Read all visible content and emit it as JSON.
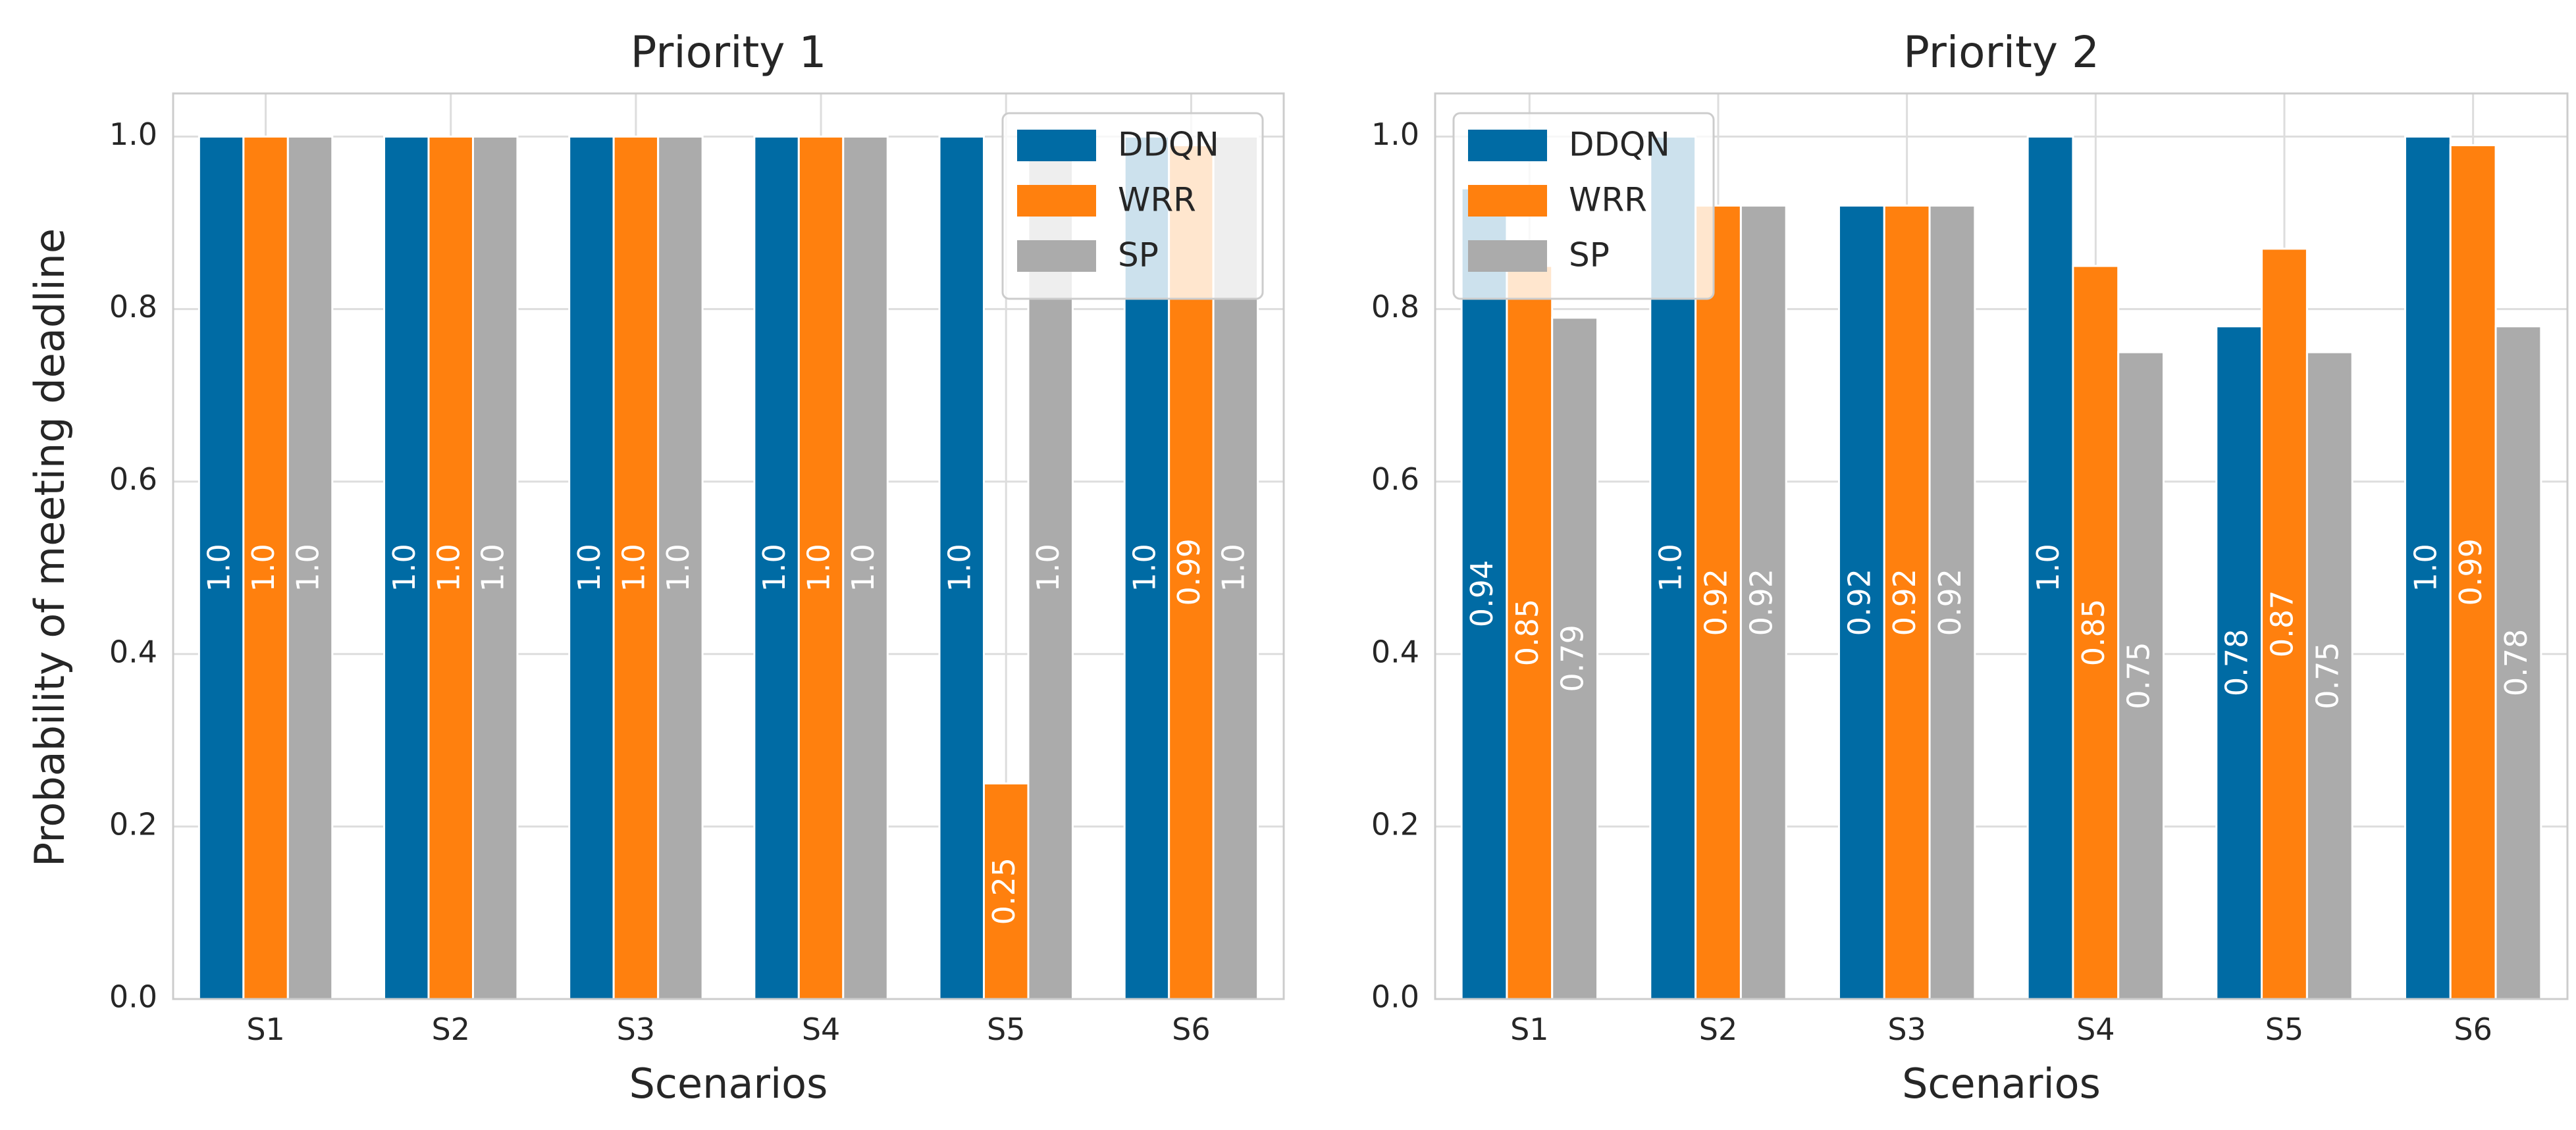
{
  "shared_ylabel": "Probability of meeting deadline",
  "chart_data": [
    {
      "type": "bar",
      "title": "Priority 1",
      "xlabel": "Scenarios",
      "ylabel": "Probability of meeting deadline",
      "categories": [
        "S1",
        "S2",
        "S3",
        "S4",
        "S5",
        "S6"
      ],
      "ylim": [
        0,
        1.05
      ],
      "yticks": [
        "0.0",
        "0.2",
        "0.4",
        "0.6",
        "0.8",
        "1.0"
      ],
      "grid": true,
      "legend_position": "top-right",
      "series": [
        {
          "name": "DDQN",
          "color": "#006BA4",
          "label_color": "#ffffff",
          "values": [
            1.0,
            1.0,
            1.0,
            1.0,
            1.0,
            1.0
          ],
          "labels": [
            "1.0",
            "1.0",
            "1.0",
            "1.0",
            "1.0",
            "1.0"
          ]
        },
        {
          "name": "WRR",
          "color": "#FF800E",
          "label_color": "#ffffff",
          "values": [
            1.0,
            1.0,
            1.0,
            1.0,
            0.25,
            0.99
          ],
          "labels": [
            "1.0",
            "1.0",
            "1.0",
            "1.0",
            "0.25",
            "0.99"
          ]
        },
        {
          "name": "SP",
          "color": "#ABABAB",
          "label_color": "#ffffff",
          "values": [
            1.0,
            1.0,
            1.0,
            1.0,
            1.0,
            1.0
          ],
          "labels": [
            "1.0",
            "1.0",
            "1.0",
            "1.0",
            "1.0",
            "1.0"
          ]
        }
      ]
    },
    {
      "type": "bar",
      "title": "Priority 2",
      "xlabel": "Scenarios",
      "ylabel": "",
      "categories": [
        "S1",
        "S2",
        "S3",
        "S4",
        "S5",
        "S6"
      ],
      "ylim": [
        0,
        1.05
      ],
      "yticks": [
        "0.0",
        "0.2",
        "0.4",
        "0.6",
        "0.8",
        "1.0"
      ],
      "grid": true,
      "legend_position": "top-left",
      "series": [
        {
          "name": "DDQN",
          "color": "#006BA4",
          "label_color": "#ffffff",
          "values": [
            0.94,
            1.0,
            0.92,
            1.0,
            0.78,
            1.0
          ],
          "labels": [
            "0.94",
            "1.0",
            "0.92",
            "1.0",
            "0.78",
            "1.0"
          ]
        },
        {
          "name": "WRR",
          "color": "#FF800E",
          "label_color": "#ffffff",
          "values": [
            0.85,
            0.92,
            0.92,
            0.85,
            0.87,
            0.99
          ],
          "labels": [
            "0.85",
            "0.92",
            "0.92",
            "0.85",
            "0.87",
            "0.99"
          ]
        },
        {
          "name": "SP",
          "color": "#ABABAB",
          "label_color": "#ffffff",
          "values": [
            0.79,
            0.92,
            0.92,
            0.75,
            0.75,
            0.78
          ],
          "labels": [
            "0.79",
            "0.92",
            "0.92",
            "0.75",
            "0.75",
            "0.78"
          ]
        }
      ]
    }
  ]
}
